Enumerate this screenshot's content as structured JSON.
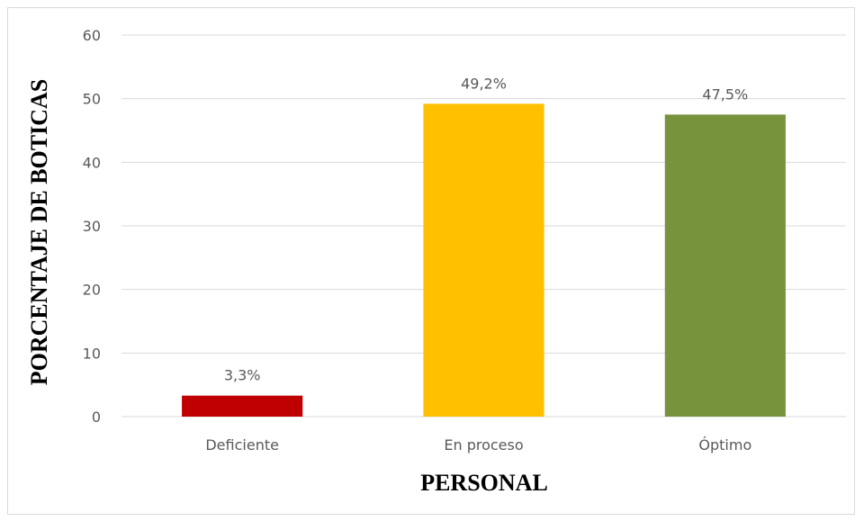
{
  "chart_data": {
    "type": "bar",
    "title": "",
    "xlabel": "PERSONAL",
    "ylabel": "PORCENTAJE DE BOTICAS",
    "categories": [
      "Deficiente",
      "En proceso",
      "Óptimo"
    ],
    "values": [
      3.3,
      49.2,
      47.5
    ],
    "data_labels": [
      "3,3%",
      "49,2%",
      "47,5%"
    ],
    "colors": [
      "#c00000",
      "#ffc000",
      "#77933c"
    ],
    "ylim": [
      0,
      60
    ],
    "yticks": [
      0,
      10,
      20,
      30,
      40,
      50,
      60
    ],
    "grid": true,
    "legend": "none"
  }
}
